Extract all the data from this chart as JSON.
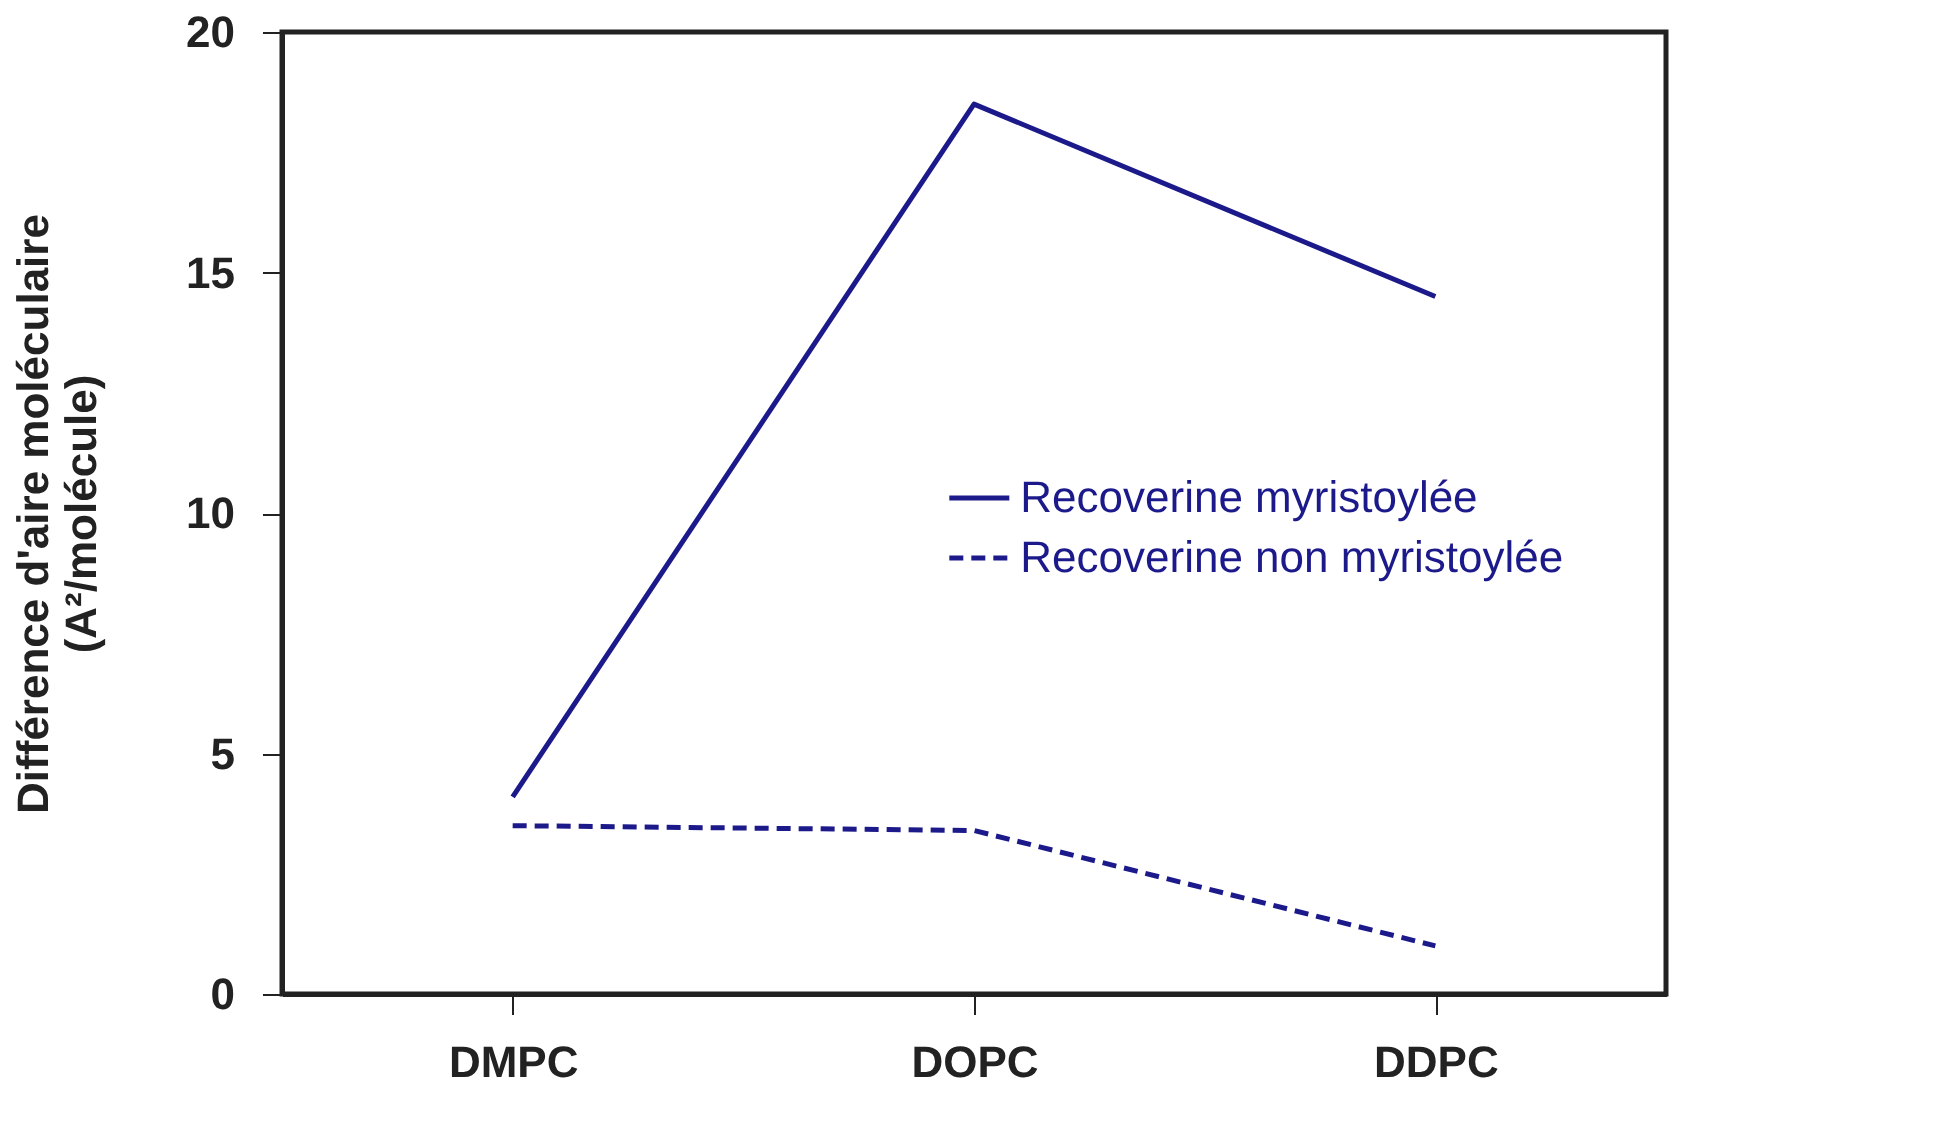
{
  "chart_data": {
    "type": "line",
    "ylabel": "Différence d'aire moléculaire\n(A²/molécule)",
    "categories": [
      "DMPC",
      "DOPC",
      "DDPC"
    ],
    "ylim": [
      0,
      20
    ],
    "yticks": [
      0,
      5,
      10,
      15,
      20
    ],
    "grid": false,
    "legend": "right",
    "marker": "none",
    "series": [
      {
        "name": "Recoverine myristoylée",
        "color": "#1c1a8a",
        "line_style": "solid",
        "values": [
          4.1,
          18.5,
          14.5
        ]
      },
      {
        "name": "Recoverine non myristoylée",
        "color": "#1c1a8a",
        "line_style": "dashed",
        "values": [
          3.5,
          3.4,
          1.0
        ]
      }
    ]
  }
}
